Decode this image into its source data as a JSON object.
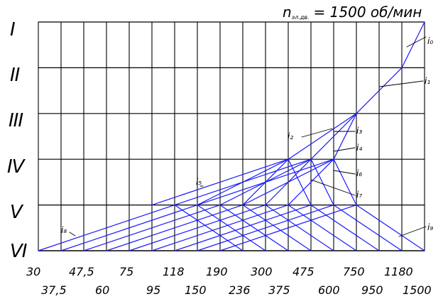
{
  "title": {
    "prefix": "n",
    "subscript": "эл.дв.",
    "text": "= 1500 об/мин"
  },
  "shafts": [
    "I",
    "II",
    "III",
    "IV",
    "V",
    "VI"
  ],
  "speeds_row1": [
    "30",
    "47,5",
    "75",
    "118",
    "190",
    "300",
    "475",
    "750",
    "1180"
  ],
  "speeds_row2": [
    "37,5",
    "60",
    "95",
    "150",
    "236",
    "375",
    "600",
    "950",
    "1500"
  ],
  "ratios": [
    {
      "id": "i0",
      "text": "i₀"
    },
    {
      "id": "i1",
      "text": "i₁"
    },
    {
      "id": "i2",
      "text": "i₂"
    },
    {
      "id": "i3",
      "text": "i₃"
    },
    {
      "id": "i4",
      "text": "i₄"
    },
    {
      "id": "i5",
      "text": "i₅"
    },
    {
      "id": "i6",
      "text": "i₆"
    },
    {
      "id": "i7",
      "text": "i₇"
    },
    {
      "id": "i8",
      "text": "i₈"
    },
    {
      "id": "i9",
      "text": "i₉"
    }
  ],
  "colors": {
    "grid": "#000000",
    "rays": "#1a1aff",
    "text": "#000000"
  }
}
